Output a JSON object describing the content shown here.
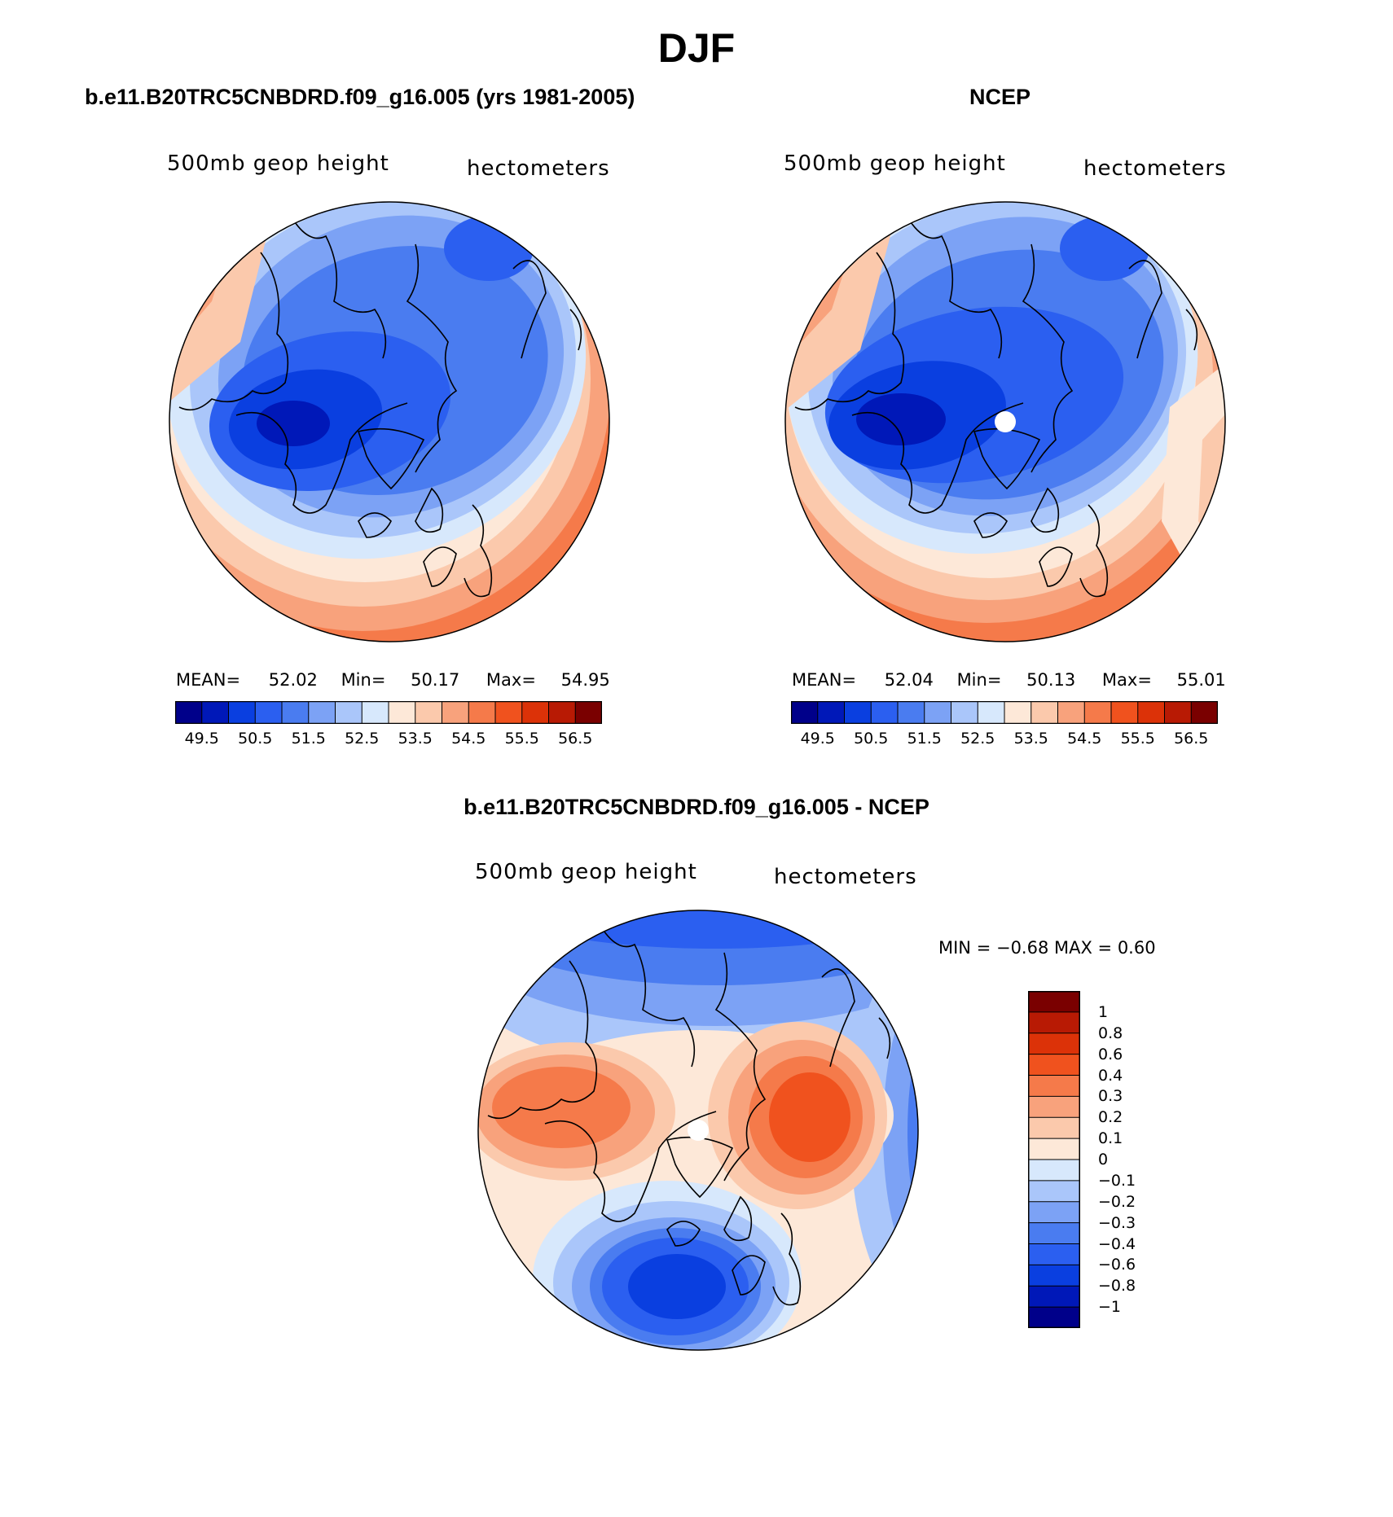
{
  "figure": {
    "title": "DJF"
  },
  "panels": {
    "model": {
      "heading": "b.e11.B20TRC5CNBDRD.f09_g16.005 (yrs 1981-2005)",
      "variable": "500mb geop height",
      "units": "hectometers",
      "stats": {
        "mean_label": "MEAN=",
        "mean": "52.02",
        "min_label": "Min=",
        "min": "50.17",
        "max_label": "Max=",
        "max": "54.95"
      }
    },
    "obs": {
      "heading": "NCEP",
      "variable": "500mb geop height",
      "units": "hectometers",
      "stats": {
        "mean_label": "MEAN=",
        "mean": "52.04",
        "min_label": "Min=",
        "min": "50.13",
        "max_label": "Max=",
        "max": "55.01"
      }
    },
    "diff": {
      "heading": "b.e11.B20TRC5CNBDRD.f09_g16.005 - NCEP",
      "variable": "500mb geop height",
      "units": "hectometers",
      "minmax_text": "MIN =   −0.68 MAX =    0.60"
    }
  },
  "colorbars": {
    "horizontal": {
      "colors": [
        "#00008a",
        "#0018b8",
        "#0a3fe0",
        "#2b5ff0",
        "#4a7cf0",
        "#7ca2f5",
        "#aac6fa",
        "#d7e8fc",
        "#fde8d8",
        "#fbc9ac",
        "#f8a27c",
        "#f57a4a",
        "#f0521e",
        "#dc3208",
        "#b81a04",
        "#7a0000"
      ],
      "labels": [
        "49.5",
        "50.5",
        "51.5",
        "52.5",
        "53.5",
        "54.5",
        "55.5",
        "56.5"
      ]
    },
    "vertical": {
      "colors_top_down": [
        "#7a0000",
        "#b81a04",
        "#dc3208",
        "#f0521e",
        "#f57a4a",
        "#f8a27c",
        "#fbc9ac",
        "#fde8d8",
        "#d7e8fc",
        "#aac6fa",
        "#7ca2f5",
        "#4a7cf0",
        "#2b5ff0",
        "#0a3fe0",
        "#0018b8",
        "#00008a"
      ],
      "labels": [
        "1",
        "0.8",
        "0.6",
        "0.4",
        "0.3",
        "0.2",
        "0.1",
        "0",
        "−0.1",
        "−0.2",
        "−0.3",
        "−0.4",
        "−0.6",
        "−0.8",
        "−1"
      ]
    }
  },
  "map_palette": {
    "c0": "#00008a",
    "c1": "#0018b8",
    "c2": "#0a3fe0",
    "c3": "#2b5ff0",
    "c4": "#4a7cf0",
    "c5": "#7ca2f5",
    "c6": "#aac6fa",
    "c7": "#d7e8fc",
    "c8": "#fde8d8",
    "c9": "#fbc9ac",
    "c10": "#f8a27c",
    "c11": "#f57a4a",
    "c12": "#f0521e"
  }
}
